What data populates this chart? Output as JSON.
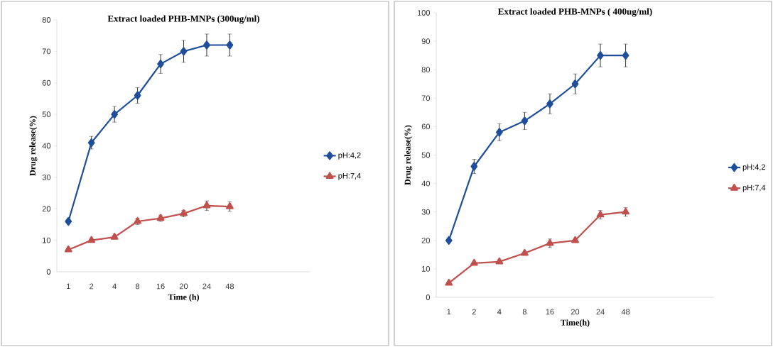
{
  "chart_data": [
    {
      "type": "line",
      "title": "Extract loaded PHB-MNPs (300ug/ml)",
      "xlabel": "Time (h)",
      "ylabel": "Drug release(%)",
      "categories": [
        "1",
        "2",
        "4",
        "8",
        "16",
        "20",
        "24",
        "48",
        null,
        null,
        null
      ],
      "ylim": [
        0,
        80
      ],
      "yticks": [
        0,
        10,
        20,
        30,
        40,
        50,
        60,
        70,
        80
      ],
      "legend": "right",
      "series": [
        {
          "name": "pH:4,2",
          "color": "#1f4e9a",
          "marker": "diamond",
          "values": [
            16,
            41,
            50,
            56,
            66,
            70,
            72,
            72,
            null,
            null,
            null
          ],
          "errors": [
            null,
            2,
            2.5,
            2.5,
            3,
            3.5,
            3.5,
            3.5,
            null,
            null,
            null
          ]
        },
        {
          "name": "pH:7,4",
          "color": "#c0504d",
          "marker": "triangle",
          "values": [
            7,
            10,
            11,
            16,
            17,
            18.5,
            21,
            20.7,
            null,
            null,
            null
          ],
          "errors": [
            null,
            null,
            null,
            1,
            1,
            1,
            1.5,
            1.5,
            null,
            null,
            null
          ]
        }
      ]
    },
    {
      "type": "line",
      "title": "Extract loaded PHB-MNPs ( 400ug/ml)",
      "xlabel": "Time(h)",
      "ylabel": "Drug release(%)",
      "categories": [
        "1",
        "2",
        "4",
        "8",
        "16",
        "20",
        "24",
        "48",
        null,
        null,
        null
      ],
      "ylim": [
        0,
        100
      ],
      "yticks": [
        0,
        10,
        20,
        30,
        40,
        50,
        60,
        70,
        80,
        90,
        100
      ],
      "legend": "right",
      "series": [
        {
          "name": "pH:4,2",
          "color": "#1f4e9a",
          "marker": "diamond",
          "values": [
            20,
            46,
            58,
            62,
            68,
            75,
            85,
            85,
            null,
            null,
            null
          ],
          "errors": [
            null,
            2.5,
            3,
            3,
            3.5,
            3.5,
            4,
            4,
            null,
            null,
            null
          ]
        },
        {
          "name": "pH:7,4",
          "color": "#c0504d",
          "marker": "triangle",
          "values": [
            5,
            12,
            12.5,
            15.5,
            19,
            20,
            29,
            30,
            null,
            null,
            null
          ],
          "errors": [
            null,
            null,
            null,
            null,
            1.5,
            null,
            1.5,
            1.5,
            null,
            null,
            null
          ]
        }
      ]
    }
  ]
}
